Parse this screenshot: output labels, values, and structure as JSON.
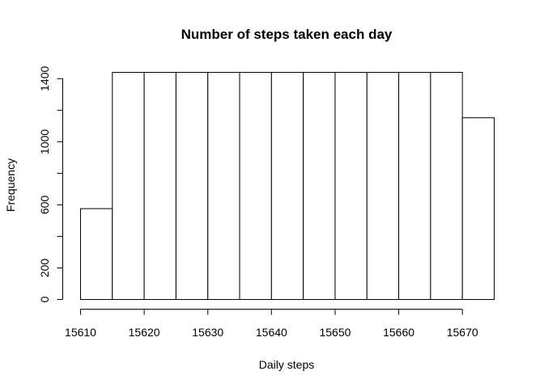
{
  "chart_data": {
    "type": "bar",
    "title": "Number of steps taken each day",
    "xlabel": "Daily steps",
    "ylabel": "Frequency",
    "bins": [
      {
        "x0": 15610,
        "x1": 15615,
        "count": 576
      },
      {
        "x0": 15615,
        "x1": 15620,
        "count": 1440
      },
      {
        "x0": 15620,
        "x1": 15625,
        "count": 1440
      },
      {
        "x0": 15625,
        "x1": 15630,
        "count": 1440
      },
      {
        "x0": 15630,
        "x1": 15635,
        "count": 1440
      },
      {
        "x0": 15635,
        "x1": 15640,
        "count": 1440
      },
      {
        "x0": 15640,
        "x1": 15645,
        "count": 1440
      },
      {
        "x0": 15645,
        "x1": 15650,
        "count": 1440
      },
      {
        "x0": 15650,
        "x1": 15655,
        "count": 1440
      },
      {
        "x0": 15655,
        "x1": 15660,
        "count": 1440
      },
      {
        "x0": 15660,
        "x1": 15665,
        "count": 1440
      },
      {
        "x0": 15665,
        "x1": 15670,
        "count": 1440
      },
      {
        "x0": 15670,
        "x1": 15675,
        "count": 1152
      }
    ],
    "xticks": [
      15610,
      15620,
      15630,
      15640,
      15650,
      15660,
      15670
    ],
    "yticks_labeled": [
      0,
      200,
      600,
      1000,
      1400
    ],
    "yticks_all": [
      0,
      200,
      400,
      600,
      800,
      1000,
      1200,
      1400
    ],
    "xlim": [
      15607,
      15678
    ],
    "ylim": [
      0,
      1440
    ],
    "grid": false
  }
}
